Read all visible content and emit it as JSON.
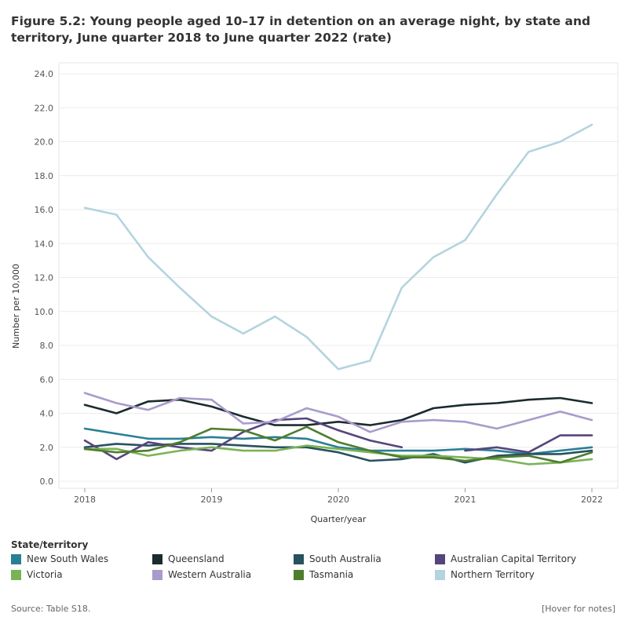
{
  "title": "Figure 5.2: Young people aged 10–17 in detention on an average night, by state and territory, June quarter 2018 to June quarter 2022 (rate)",
  "source": "Source: Table S18.",
  "hover_notes": "[Hover for notes]",
  "legend_title": "State/territory",
  "chart_data": {
    "type": "line",
    "xlabel": "Quarter/year",
    "ylabel": "Number per 10,000",
    "x": [
      2018.0,
      2018.25,
      2018.5,
      2018.75,
      2019.0,
      2019.25,
      2019.5,
      2019.75,
      2020.0,
      2020.25,
      2020.5,
      2020.75,
      2021.0,
      2021.25,
      2021.5,
      2021.75,
      2022.0
    ],
    "x_ticks": [
      2018,
      2019,
      2020,
      2021,
      2022
    ],
    "x_tick_labels": [
      "2018",
      "2019",
      "2020",
      "2021",
      "2022"
    ],
    "ylim": [
      0,
      24
    ],
    "y_ticks": [
      0,
      2,
      4,
      6,
      8,
      10,
      12,
      14,
      16,
      18,
      20,
      22,
      24
    ],
    "y_tick_labels": [
      "0.0",
      "2.0",
      "4.0",
      "6.0",
      "8.0",
      "10.0",
      "12.0",
      "14.0",
      "16.0",
      "18.0",
      "20.0",
      "22.0",
      "24.0"
    ],
    "grid": true,
    "legend_position": "bottom",
    "series": [
      {
        "name": "New South Wales",
        "color": "#2a7f96",
        "values": [
          3.1,
          2.8,
          2.5,
          2.5,
          2.6,
          2.5,
          2.6,
          2.5,
          2.0,
          1.8,
          1.8,
          1.8,
          1.9,
          1.8,
          1.6,
          1.8,
          2.0
        ]
      },
      {
        "name": "Queensland",
        "color": "#1b2b2e",
        "values": [
          4.5,
          4.0,
          4.7,
          4.8,
          4.4,
          3.8,
          3.3,
          3.3,
          3.5,
          3.3,
          3.6,
          4.3,
          4.5,
          4.6,
          4.8,
          4.9,
          4.6
        ]
      },
      {
        "name": "South Australia",
        "color": "#27525e",
        "values": [
          2.0,
          2.2,
          2.1,
          2.2,
          2.2,
          2.1,
          2.0,
          2.0,
          1.7,
          1.2,
          1.3,
          1.6,
          1.1,
          1.5,
          1.6,
          1.6,
          1.8
        ]
      },
      {
        "name": "Australian Capital Territory",
        "color": "#56457c",
        "values": [
          2.4,
          1.3,
          2.3,
          2.0,
          1.8,
          2.9,
          3.6,
          3.7,
          3.0,
          2.4,
          2.0,
          null,
          1.8,
          2.0,
          1.7,
          2.7,
          2.7
        ]
      },
      {
        "name": "Victoria",
        "color": "#7ab356",
        "values": [
          1.9,
          1.9,
          1.5,
          1.8,
          2.0,
          1.8,
          1.8,
          2.1,
          1.9,
          1.7,
          1.5,
          1.5,
          1.4,
          1.3,
          1.0,
          1.1,
          1.3
        ]
      },
      {
        "name": "Western Australia",
        "color": "#a99bcb",
        "values": [
          5.2,
          4.6,
          4.2,
          4.9,
          4.8,
          3.4,
          3.5,
          4.3,
          3.8,
          2.9,
          3.5,
          3.6,
          3.5,
          3.1,
          3.6,
          4.1,
          3.6
        ]
      },
      {
        "name": "Tasmania",
        "color": "#4e7d2e",
        "values": [
          1.9,
          1.7,
          1.8,
          2.3,
          3.1,
          3.0,
          2.4,
          3.2,
          2.3,
          1.8,
          1.4,
          1.4,
          1.2,
          1.4,
          1.5,
          1.1,
          1.7
        ]
      },
      {
        "name": "Northern Territory",
        "color": "#b3d4de",
        "values": [
          16.1,
          15.7,
          13.2,
          11.4,
          9.7,
          8.7,
          9.7,
          8.5,
          6.6,
          7.1,
          11.4,
          13.2,
          14.2,
          16.9,
          19.4,
          20.0,
          21.0
        ]
      }
    ]
  }
}
